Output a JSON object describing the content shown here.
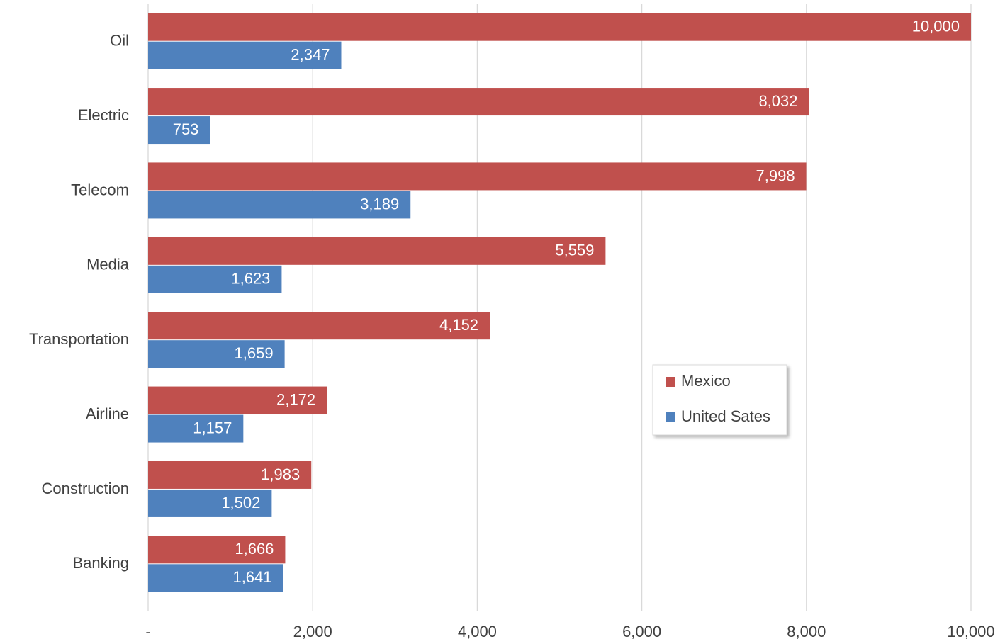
{
  "chart_data": {
    "type": "hbar",
    "categories": [
      "Oil",
      "Electric",
      "Telecom",
      "Media",
      "Transportation",
      "Airline",
      "Construction",
      "Banking"
    ],
    "series": [
      {
        "name": "Mexico",
        "color": "#c0504d",
        "values": [
          10000,
          8032,
          7998,
          5559,
          4152,
          2172,
          1983,
          1666
        ],
        "value_labels": [
          "10,000",
          "8,032",
          "7,998",
          "5,559",
          "4,152",
          "2,172",
          "1,983",
          "1,666"
        ]
      },
      {
        "name": "United Sates",
        "color": "#4f81bd",
        "values": [
          2347,
          753,
          3189,
          1623,
          1659,
          1157,
          1502,
          1641
        ],
        "value_labels": [
          "2,347",
          "753",
          "3,189",
          "1,623",
          "1,659",
          "1,157",
          "1,502",
          "1,641"
        ]
      }
    ],
    "xlim": [
      0,
      10000
    ],
    "xticks": [
      {
        "value": 0,
        "label": "-"
      },
      {
        "value": 2000,
        "label": "2,000"
      },
      {
        "value": 4000,
        "label": "4,000"
      },
      {
        "value": 6000,
        "label": "6,000"
      },
      {
        "value": 8000,
        "label": "8,000"
      },
      {
        "value": 10000,
        "label": "10,000"
      }
    ],
    "grid": true,
    "legend": "center-right"
  }
}
